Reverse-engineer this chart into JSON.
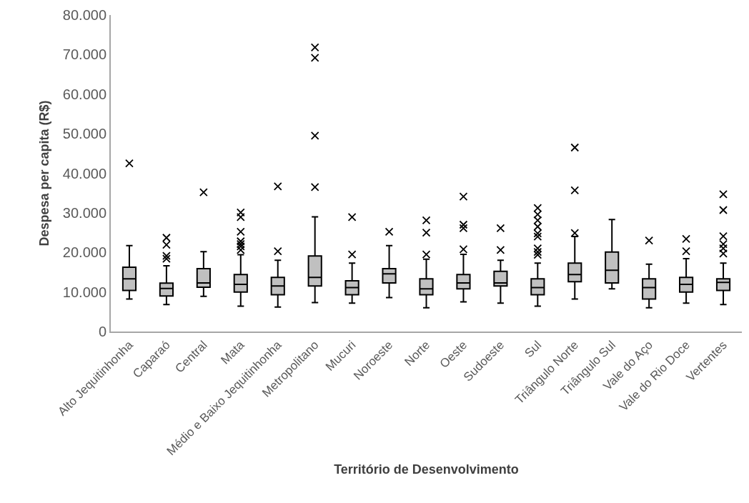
{
  "chart_data": {
    "type": "box",
    "xlabel": "Território de Desenvolvimento",
    "ylabel": "Despesa per capita (R$)",
    "categories": [
      "Alto Jequitinhonha",
      "Caparaó",
      "Central",
      "Mata",
      "Médio e Baixo Jequitinhonha",
      "Metropolitano",
      "Mucuri",
      "Noroeste",
      "Norte",
      "Oeste",
      "Sudoeste",
      "Sul",
      "Triângulo Norte",
      "Triângulo Sul",
      "Vale do Aço",
      "Vale do Rio Doce",
      "Vertentes"
    ],
    "color": "#c0c0c0",
    "marker": "star",
    "boxes": [
      {
        "low": 8200,
        "q1": 10400,
        "median": 13300,
        "q3": 16250,
        "high": 21700,
        "outliers": [
          42500
        ]
      },
      {
        "low": 6800,
        "q1": 9000,
        "median": 10900,
        "q3": 12250,
        "high": 16600,
        "outliers": [
          23700,
          21900,
          19100,
          18400
        ]
      },
      {
        "low": 8900,
        "q1": 11200,
        "median": 12300,
        "q3": 15900,
        "high": 20200,
        "outliers": [
          35200
        ]
      },
      {
        "low": 6400,
        "q1": 10000,
        "median": 11900,
        "q3": 14400,
        "high": 19400,
        "outliers": [
          30100,
          28900,
          25200,
          22800,
          22100,
          21500,
          20600
        ]
      },
      {
        "low": 6200,
        "q1": 9300,
        "median": 11500,
        "q3": 13700,
        "high": 18000,
        "outliers": [
          36700,
          20300
        ]
      },
      {
        "low": 7300,
        "q1": 11500,
        "median": 13700,
        "q3": 19100,
        "high": 29000,
        "outliers": [
          71800,
          69200,
          49500,
          36500
        ]
      },
      {
        "low": 7200,
        "q1": 9300,
        "median": 11100,
        "q3": 12800,
        "high": 17300,
        "outliers": [
          28900,
          19500
        ]
      },
      {
        "low": 8600,
        "q1": 12300,
        "median": 14600,
        "q3": 15900,
        "high": 21700,
        "outliers": [
          25200
        ]
      },
      {
        "low": 6000,
        "q1": 9300,
        "median": 10800,
        "q3": 13300,
        "high": 18300,
        "outliers": [
          28100,
          25000,
          19500
        ]
      },
      {
        "low": 7500,
        "q1": 10800,
        "median": 12300,
        "q3": 14400,
        "high": 19500,
        "outliers": [
          34100,
          27000,
          26100,
          20800
        ]
      },
      {
        "low": 7200,
        "q1": 11500,
        "median": 12300,
        "q3": 15200,
        "high": 18000,
        "outliers": [
          26100,
          20600
        ]
      },
      {
        "low": 6400,
        "q1": 9300,
        "median": 11100,
        "q3": 13300,
        "high": 17300,
        "outliers": [
          31200,
          29600,
          28100,
          26500,
          24800,
          24000,
          21000,
          20100,
          19400
        ]
      },
      {
        "low": 8200,
        "q1": 12600,
        "median": 14400,
        "q3": 17300,
        "high": 24000,
        "outliers": [
          46500,
          35700,
          24900
        ]
      },
      {
        "low": 10800,
        "q1": 12300,
        "median": 15500,
        "q3": 20100,
        "high": 28300
      },
      {
        "low": 6000,
        "q1": 8200,
        "median": 11100,
        "q3": 13300,
        "high": 17000,
        "outliers": [
          23000
        ]
      },
      {
        "low": 7200,
        "q1": 10000,
        "median": 11900,
        "q3": 13700,
        "high": 18400,
        "outliers": [
          23400,
          20300
        ]
      },
      {
        "low": 6800,
        "q1": 10400,
        "median": 12400,
        "q3": 13300,
        "high": 17300,
        "outliers": [
          34700,
          30700,
          24100,
          22100,
          21000,
          19700
        ]
      }
    ],
    "ylim": [
      0,
      80000
    ],
    "yticks": [
      0,
      {
        "value": 10000,
        "label": "10.000"
      },
      {
        "value": 20000,
        "label": "20.000"
      },
      {
        "value": 30000,
        "label": "30.000"
      },
      {
        "value": 40000,
        "label": "40.000"
      },
      {
        "value": 50000,
        "label": "50.000"
      },
      {
        "value": 60000,
        "label": "60.000"
      },
      {
        "value": 70000,
        "label": "70.000"
      },
      {
        "value": 80000,
        "label": "80.000"
      }
    ]
  }
}
